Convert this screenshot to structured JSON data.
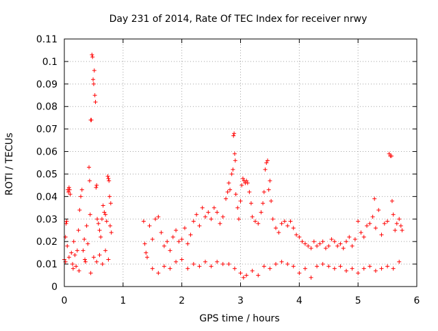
{
  "chart_data": {
    "type": "scatter",
    "title": "Day 231 of 2014, Rate Of TEC Index for receiver nrwy",
    "xlabel": "GPS time / hours",
    "ylabel": "ROTI / TECUs",
    "xlim": [
      0,
      6
    ],
    "ylim": [
      0,
      0.11
    ],
    "xticks": [
      0,
      1,
      2,
      3,
      4,
      5,
      6
    ],
    "xtick_labels": [
      "0",
      "1",
      "2",
      "3",
      "4",
      "5",
      "6"
    ],
    "yticks": [
      0,
      0.01,
      0.02,
      0.03,
      0.04,
      0.05,
      0.06,
      0.07,
      0.08,
      0.09,
      0.1,
      0.11
    ],
    "ytick_labels": [
      "0",
      "0.01",
      "0.02",
      "0.03",
      "0.04",
      "0.05",
      "0.06",
      "0.07",
      "0.08",
      "0.09",
      "0.1",
      "0.11"
    ],
    "grid": true,
    "marker": "+",
    "color": "#ff0000",
    "series": [
      {
        "name": "ROTI",
        "points": [
          [
            0.0,
            0.012
          ],
          [
            0.02,
            0.022
          ],
          [
            0.03,
            0.028
          ],
          [
            0.04,
            0.029
          ],
          [
            0.05,
            0.018
          ],
          [
            0.06,
            0.043
          ],
          [
            0.07,
            0.042
          ],
          [
            0.08,
            0.044
          ],
          [
            0.09,
            0.043
          ],
          [
            0.1,
            0.041
          ],
          [
            0.12,
            0.015
          ],
          [
            0.14,
            0.01
          ],
          [
            0.16,
            0.02
          ],
          [
            0.18,
            0.014
          ],
          [
            0.2,
            0.009
          ],
          [
            0.22,
            0.016
          ],
          [
            0.24,
            0.025
          ],
          [
            0.26,
            0.034
          ],
          [
            0.28,
            0.04
          ],
          [
            0.3,
            0.043
          ],
          [
            0.32,
            0.016
          ],
          [
            0.34,
            0.021
          ],
          [
            0.36,
            0.011
          ],
          [
            0.38,
            0.027
          ],
          [
            0.4,
            0.019
          ],
          [
            0.42,
            0.053
          ],
          [
            0.43,
            0.047
          ],
          [
            0.44,
            0.032
          ],
          [
            0.45,
            0.074
          ],
          [
            0.46,
            0.074
          ],
          [
            0.47,
            0.103
          ],
          [
            0.48,
            0.102
          ],
          [
            0.49,
            0.092
          ],
          [
            0.5,
            0.09
          ],
          [
            0.51,
            0.096
          ],
          [
            0.52,
            0.085
          ],
          [
            0.53,
            0.082
          ],
          [
            0.54,
            0.044
          ],
          [
            0.55,
            0.045
          ],
          [
            0.56,
            0.03
          ],
          [
            0.58,
            0.028
          ],
          [
            0.6,
            0.025
          ],
          [
            0.62,
            0.022
          ],
          [
            0.64,
            0.03
          ],
          [
            0.66,
            0.036
          ],
          [
            0.68,
            0.033
          ],
          [
            0.7,
            0.032
          ],
          [
            0.72,
            0.029
          ],
          [
            0.74,
            0.049
          ],
          [
            0.75,
            0.048
          ],
          [
            0.76,
            0.047
          ],
          [
            0.77,
            0.04
          ],
          [
            0.78,
            0.027
          ],
          [
            0.79,
            0.037
          ],
          [
            0.8,
            0.024
          ],
          [
            0.5,
            0.013
          ],
          [
            0.55,
            0.011
          ],
          [
            0.6,
            0.014
          ],
          [
            0.65,
            0.01
          ],
          [
            0.7,
            0.016
          ],
          [
            0.75,
            0.012
          ],
          [
            0.02,
            0.011
          ],
          [
            0.08,
            0.013
          ],
          [
            0.15,
            0.008
          ],
          [
            0.25,
            0.007
          ],
          [
            0.35,
            0.012
          ],
          [
            0.45,
            0.006
          ],
          [
            1.35,
            0.029
          ],
          [
            1.37,
            0.019
          ],
          [
            1.39,
            0.015
          ],
          [
            1.41,
            0.013
          ],
          [
            1.45,
            0.027
          ],
          [
            1.5,
            0.021
          ],
          [
            1.55,
            0.03
          ],
          [
            1.6,
            0.031
          ],
          [
            1.65,
            0.024
          ],
          [
            1.7,
            0.018
          ],
          [
            1.75,
            0.02
          ],
          [
            1.8,
            0.016
          ],
          [
            1.85,
            0.022
          ],
          [
            1.9,
            0.025
          ],
          [
            1.95,
            0.02
          ],
          [
            2.0,
            0.021
          ],
          [
            2.05,
            0.026
          ],
          [
            2.1,
            0.019
          ],
          [
            2.15,
            0.023
          ],
          [
            2.2,
            0.029
          ],
          [
            2.25,
            0.032
          ],
          [
            2.3,
            0.027
          ],
          [
            2.35,
            0.035
          ],
          [
            2.4,
            0.031
          ],
          [
            2.45,
            0.033
          ],
          [
            2.5,
            0.03
          ],
          [
            2.55,
            0.035
          ],
          [
            2.6,
            0.033
          ],
          [
            2.65,
            0.028
          ],
          [
            2.7,
            0.031
          ],
          [
            2.75,
            0.039
          ],
          [
            2.78,
            0.042
          ],
          [
            2.8,
            0.046
          ],
          [
            2.82,
            0.043
          ],
          [
            2.85,
            0.05
          ],
          [
            2.87,
            0.052
          ],
          [
            2.88,
            0.067
          ],
          [
            2.89,
            0.068
          ],
          [
            2.9,
            0.059
          ],
          [
            2.91,
            0.056
          ],
          [
            2.92,
            0.041
          ],
          [
            2.95,
            0.035
          ],
          [
            2.97,
            0.03
          ],
          [
            3.0,
            0.038
          ],
          [
            3.02,
            0.045
          ],
          [
            3.04,
            0.048
          ],
          [
            3.06,
            0.047
          ],
          [
            3.08,
            0.046
          ],
          [
            3.1,
            0.047
          ],
          [
            3.12,
            0.046
          ],
          [
            3.15,
            0.042
          ],
          [
            3.18,
            0.037
          ],
          [
            3.2,
            0.031
          ],
          [
            3.25,
            0.029
          ],
          [
            3.3,
            0.028
          ],
          [
            3.35,
            0.033
          ],
          [
            3.38,
            0.037
          ],
          [
            3.4,
            0.042
          ],
          [
            3.42,
            0.052
          ],
          [
            3.44,
            0.055
          ],
          [
            3.46,
            0.056
          ],
          [
            3.48,
            0.043
          ],
          [
            3.5,
            0.047
          ],
          [
            3.52,
            0.038
          ],
          [
            3.55,
            0.03
          ],
          [
            3.6,
            0.026
          ],
          [
            3.65,
            0.024
          ],
          [
            3.7,
            0.028
          ],
          [
            3.75,
            0.029
          ],
          [
            3.8,
            0.027
          ],
          [
            3.85,
            0.029
          ],
          [
            3.9,
            0.026
          ],
          [
            3.95,
            0.023
          ],
          [
            4.0,
            0.022
          ],
          [
            4.05,
            0.02
          ],
          [
            4.1,
            0.019
          ],
          [
            4.15,
            0.018
          ],
          [
            4.2,
            0.017
          ],
          [
            4.25,
            0.02
          ],
          [
            4.3,
            0.018
          ],
          [
            4.35,
            0.019
          ],
          [
            4.4,
            0.02
          ],
          [
            4.45,
            0.017
          ],
          [
            4.5,
            0.018
          ],
          [
            4.55,
            0.021
          ],
          [
            4.6,
            0.02
          ],
          [
            4.65,
            0.018
          ],
          [
            4.7,
            0.019
          ],
          [
            4.75,
            0.017
          ],
          [
            4.8,
            0.02
          ],
          [
            4.85,
            0.022
          ],
          [
            4.9,
            0.018
          ],
          [
            4.95,
            0.021
          ],
          [
            5.0,
            0.029
          ],
          [
            5.05,
            0.024
          ],
          [
            5.1,
            0.022
          ],
          [
            5.15,
            0.027
          ],
          [
            5.2,
            0.028
          ],
          [
            5.25,
            0.031
          ],
          [
            5.28,
            0.039
          ],
          [
            5.3,
            0.026
          ],
          [
            5.35,
            0.034
          ],
          [
            5.4,
            0.023
          ],
          [
            5.45,
            0.028
          ],
          [
            5.5,
            0.029
          ],
          [
            5.53,
            0.059
          ],
          [
            5.55,
            0.058
          ],
          [
            5.57,
            0.058
          ],
          [
            5.58,
            0.038
          ],
          [
            5.6,
            0.032
          ],
          [
            5.63,
            0.025
          ],
          [
            5.66,
            0.028
          ],
          [
            5.7,
            0.03
          ],
          [
            5.73,
            0.027
          ],
          [
            5.75,
            0.025
          ],
          [
            1.5,
            0.008
          ],
          [
            1.6,
            0.006
          ],
          [
            1.7,
            0.009
          ],
          [
            1.8,
            0.008
          ],
          [
            1.9,
            0.011
          ],
          [
            2.0,
            0.012
          ],
          [
            2.1,
            0.008
          ],
          [
            2.2,
            0.01
          ],
          [
            2.3,
            0.009
          ],
          [
            2.4,
            0.011
          ],
          [
            2.5,
            0.009
          ],
          [
            2.6,
            0.011
          ],
          [
            2.7,
            0.01
          ],
          [
            2.8,
            0.01
          ],
          [
            2.9,
            0.008
          ],
          [
            3.0,
            0.006
          ],
          [
            3.05,
            0.004
          ],
          [
            3.1,
            0.005
          ],
          [
            3.2,
            0.007
          ],
          [
            3.3,
            0.005
          ],
          [
            3.4,
            0.009
          ],
          [
            3.5,
            0.008
          ],
          [
            3.6,
            0.01
          ],
          [
            3.7,
            0.011
          ],
          [
            3.8,
            0.01
          ],
          [
            3.9,
            0.009
          ],
          [
            4.0,
            0.006
          ],
          [
            4.1,
            0.008
          ],
          [
            4.2,
            0.004
          ],
          [
            4.3,
            0.009
          ],
          [
            4.4,
            0.01
          ],
          [
            4.5,
            0.009
          ],
          [
            4.6,
            0.008
          ],
          [
            4.7,
            0.009
          ],
          [
            4.8,
            0.007
          ],
          [
            4.9,
            0.008
          ],
          [
            5.0,
            0.006
          ],
          [
            5.1,
            0.008
          ],
          [
            5.2,
            0.009
          ],
          [
            5.3,
            0.007
          ],
          [
            5.4,
            0.008
          ],
          [
            5.5,
            0.009
          ],
          [
            5.6,
            0.008
          ],
          [
            5.7,
            0.011
          ]
        ]
      }
    ]
  }
}
